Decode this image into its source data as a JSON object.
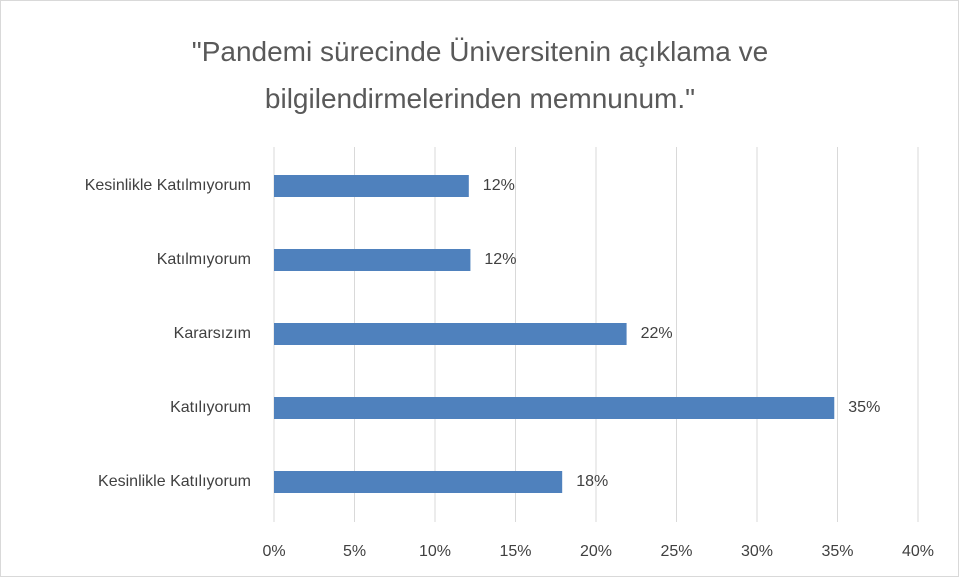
{
  "chart_data": {
    "type": "bar",
    "orientation": "horizontal",
    "title": "\"Pandemi sürecinde Üniversitenin açıklama ve bilgilendirmelerinden memnunum.\"",
    "categories": [
      "Kesinlikle Katılmıyorum",
      "Katılmıyorum",
      "Kararsızım",
      "Katılıyorum",
      "Kesinlikle Katılıyorum"
    ],
    "values": [
      12.1,
      12.2,
      21.9,
      34.8,
      17.9
    ],
    "value_labels": [
      "12%",
      "12%",
      "22%",
      "35%",
      "18%"
    ],
    "color": "#4f81bd",
    "xlim": [
      0,
      40
    ],
    "xticks": [
      {
        "value": 0,
        "label": "0%"
      },
      {
        "value": 5,
        "label": "5%"
      },
      {
        "value": 10,
        "label": "10%"
      },
      {
        "value": 15,
        "label": "15%"
      },
      {
        "value": 20,
        "label": "20%"
      },
      {
        "value": 25,
        "label": "25%"
      },
      {
        "value": 30,
        "label": "30%"
      },
      {
        "value": 35,
        "label": "35%"
      },
      {
        "value": 40,
        "label": "40%"
      }
    ],
    "grid": true
  }
}
